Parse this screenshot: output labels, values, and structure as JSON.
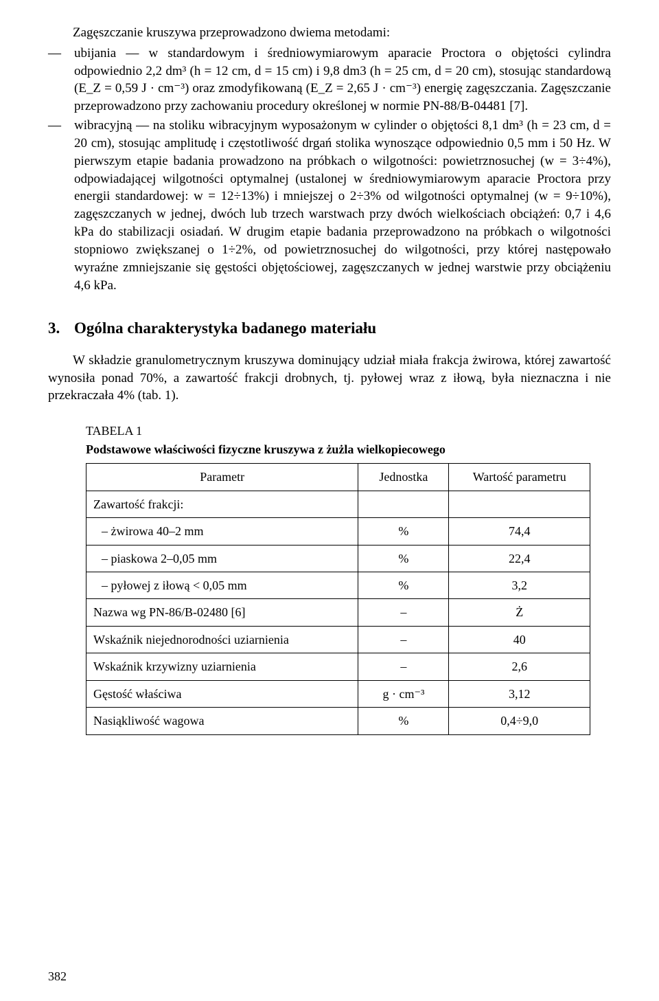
{
  "page": {
    "number": "382",
    "background": "#ffffff",
    "text_color": "#000000",
    "font_family": "Times New Roman",
    "body_fontsize_pt": 14,
    "heading_fontsize_pt": 17
  },
  "intro_line": "Zagęszczanie kruszywa przeprowadzono dwiema metodami:",
  "bullets": {
    "dash": "—",
    "items": [
      "ubijania — w standardowym i średniowymiarowym aparacie Proctora o objętości cylindra odpowiednio 2,2 dm³ (h = 12 cm, d = 15 cm) i 9,8 dm3 (h = 25 cm, d = 20 cm), stosując standardową (E_Z = 0,59 J · cm⁻³) oraz zmodyfikowaną (E_Z = 2,65 J · cm⁻³) energię zagęszczania. Zagęszczanie przeprowadzono przy zachowaniu procedury określonej w normie PN-88/B-04481 [7].",
      "wibracyjną — na stoliku wibracyjnym wyposażonym w cylinder o objętości 8,1 dm³ (h = 23 cm, d = 20 cm), stosując amplitudę i częstotliwość drgań stolika wynoszące odpowiednio 0,5 mm i 50 Hz. W pierwszym etapie badania prowadzono na próbkach o wilgotności: powietrznosuchej (w = 3÷4%), odpowiadającej wilgotności optymalnej (ustalonej w średniowymiarowym aparacie Proctora przy energii standardowej: w = 12÷13%) i mniejszej o 2÷3% od wilgotności optymalnej (w = 9÷10%), zagęszczanych w jednej, dwóch lub trzech warstwach przy dwóch wielkościach obciążeń: 0,7 i 4,6 kPa do stabilizacji osiadań. W drugim etapie badania przeprowadzono na próbkach o wilgotności stopniowo zwiększanej o 1÷2%, od powietrznosuchej do wilgotności, przy której następowało wyraźne zmniejszanie się gęstości objętościowej, zagęszczanych w jednej warstwie przy obciążeniu 4,6 kPa."
    ]
  },
  "section": {
    "number": "3.",
    "title": "Ogólna charakterystyka badanego materiału",
    "paragraph": "W składzie granulometrycznym kruszywa dominujący udział miała frakcja żwirowa, której zawartość wynosiła ponad 70%, a zawartość frakcji drobnych, tj. pyłowej wraz z iłową, była nieznaczna i nie przekraczała 4% (tab. 1)."
  },
  "table": {
    "label": "TABELA 1",
    "caption": "Podstawowe właściwości fizyczne kruszywa z żużla wielkopiecowego",
    "type": "table",
    "border_color": "#000000",
    "background_color": "#ffffff",
    "columns": [
      "Parametr",
      "Jednostka",
      "Wartość parametru"
    ],
    "column_widths_pct": [
      54,
      18,
      28
    ],
    "column_align": [
      "left",
      "center",
      "center"
    ],
    "group_header": "Zawartość frakcji:",
    "group_rows": [
      {
        "label": "– żwirowa 40–2 mm",
        "unit": "%",
        "value": "74,4"
      },
      {
        "label": "– piaskowa 2–0,05 mm",
        "unit": "%",
        "value": "22,4"
      },
      {
        "label": "– pyłowej z iłową < 0,05 mm",
        "unit": "%",
        "value": "3,2"
      }
    ],
    "simple_rows": [
      {
        "label": "Nazwa wg PN-86/B-02480 [6]",
        "unit": "–",
        "value": "Ż"
      },
      {
        "label": "Wskaźnik niejednorodności uziarnienia",
        "unit": "–",
        "value": "40"
      },
      {
        "label": "Wskaźnik krzywizny uziarnienia",
        "unit": "–",
        "value": "2,6"
      },
      {
        "label": "Gęstość właściwa",
        "unit": "g · cm⁻³",
        "value": "3,12"
      },
      {
        "label": "Nasiąkliwość wagowa",
        "unit": "%",
        "value": "0,4÷9,0"
      }
    ]
  }
}
